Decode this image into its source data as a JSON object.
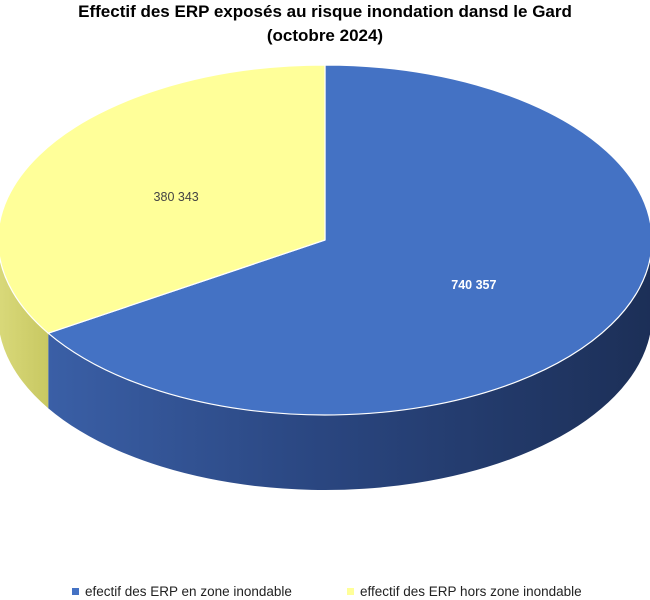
{
  "chart_data": {
    "type": "pie",
    "title": "Effectif des ERP exposés au risque inondation dansd le Gard",
    "subtitle": "(octobre 2024)",
    "slices": [
      {
        "label": "efectif des ERP en zone inondable",
        "value": 740357,
        "value_label": "740 357",
        "color": "#4472C4"
      },
      {
        "label": "effectif des ERP hors zone inondable",
        "value": 380343,
        "value_label": "380 343",
        "color": "#FFFF99"
      }
    ],
    "legend_position": "bottom",
    "style": "3d"
  }
}
